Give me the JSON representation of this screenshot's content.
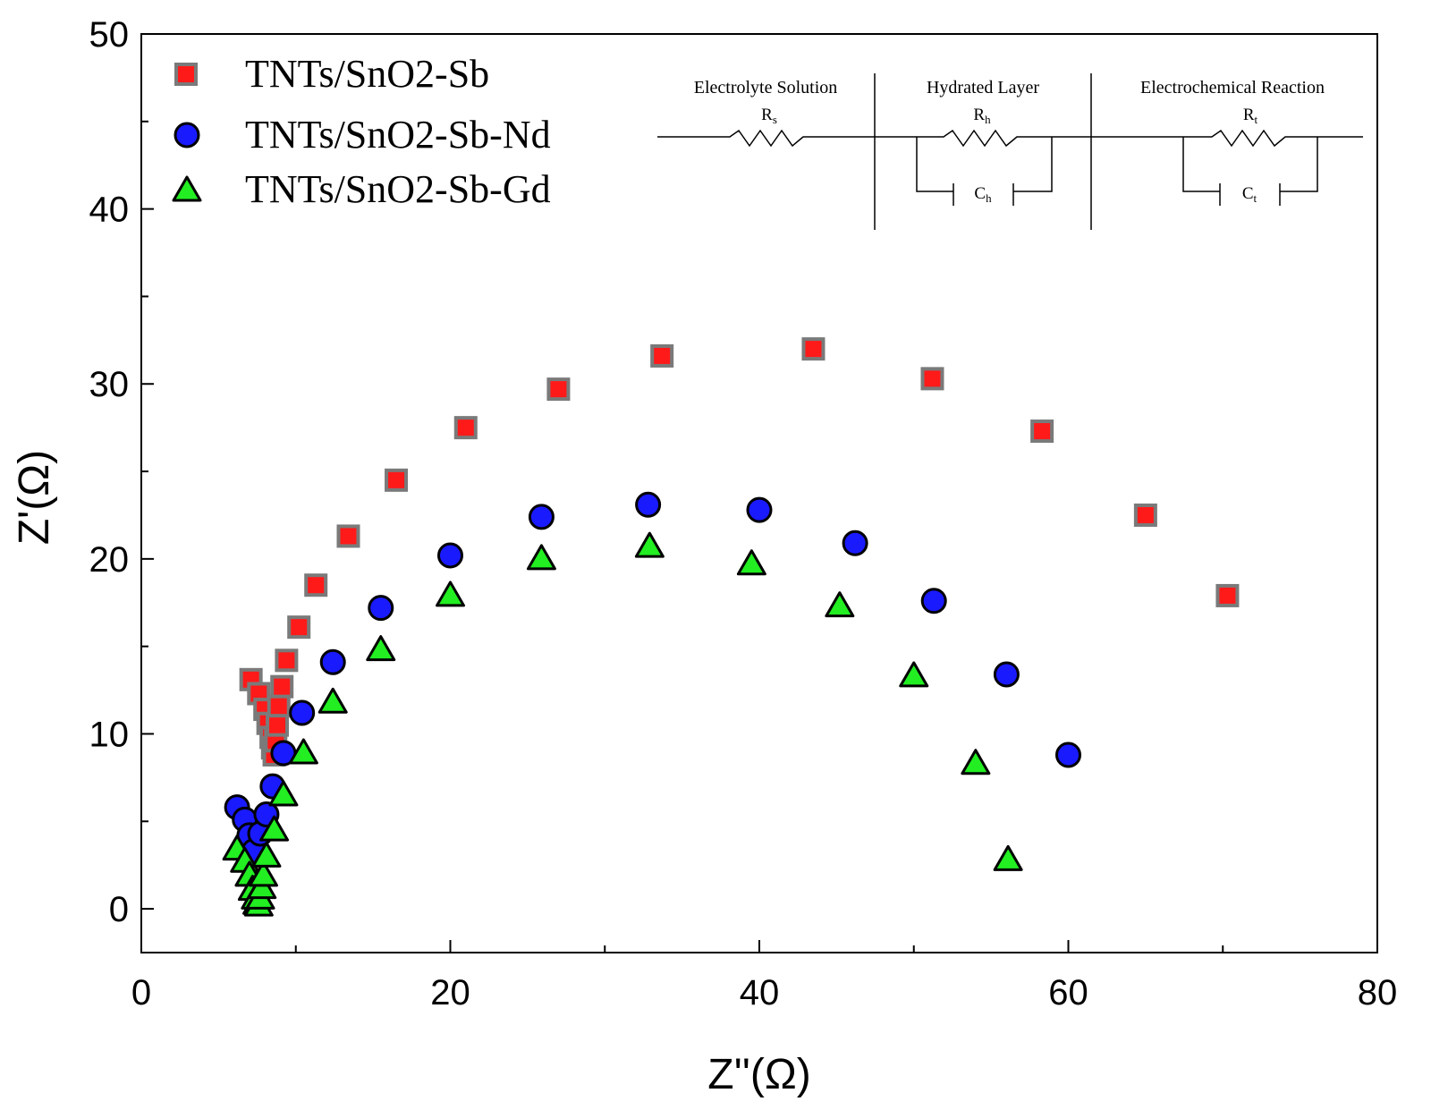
{
  "chart_data": {
    "type": "scatter",
    "title": "",
    "xlabel": "Z''(Ω)",
    "ylabel": "Z'(Ω)",
    "xlim": [
      0,
      80
    ],
    "ylim": [
      -2.5,
      50
    ],
    "xticks": [
      0,
      20,
      40,
      60,
      80
    ],
    "yticks": [
      0,
      10,
      20,
      30,
      40,
      50
    ],
    "legend_position": "top-left",
    "series": [
      {
        "name": "TNTs/SnO2-Sb",
        "marker": "square",
        "color": "#ff1a1a",
        "edge": "#7a7a7a",
        "x": [
          7.1,
          7.6,
          8.0,
          8.2,
          8.4,
          8.5,
          8.6,
          8.7,
          8.8,
          8.9,
          9.1,
          9.4,
          10.2,
          11.3,
          13.4,
          16.5,
          21.0,
          27.0,
          33.7,
          43.5,
          51.2,
          58.3,
          65.0,
          70.3
        ],
        "y": [
          13.1,
          12.3,
          11.4,
          10.6,
          9.8,
          9.2,
          8.8,
          9.6,
          10.5,
          11.6,
          12.7,
          14.2,
          16.1,
          18.5,
          21.3,
          24.5,
          27.5,
          29.7,
          31.6,
          32.0,
          30.3,
          27.3,
          22.5,
          17.9
        ]
      },
      {
        "name": "TNTs/SnO2-Sb-Nd",
        "marker": "circle",
        "color": "#1a1aff",
        "edge": "#000000",
        "x": [
          6.2,
          6.7,
          7.0,
          7.3,
          7.7,
          8.1,
          8.5,
          9.2,
          10.4,
          12.4,
          15.5,
          20.0,
          25.9,
          32.8,
          40.0,
          46.2,
          51.3,
          56.0,
          60.0
        ],
        "y": [
          5.8,
          5.1,
          4.2,
          3.3,
          4.3,
          5.4,
          7.0,
          8.9,
          11.2,
          14.1,
          17.2,
          20.2,
          22.4,
          23.1,
          22.8,
          20.9,
          17.6,
          13.4,
          8.8
        ],
        "points_note": ""
      },
      {
        "name": "TNTs/SnO2-Sb-Gd",
        "marker": "triangle",
        "color": "#22ee22",
        "edge": "#000000",
        "x": [
          6.2,
          6.7,
          7.0,
          7.2,
          7.4,
          7.5,
          7.6,
          7.7,
          7.8,
          7.9,
          8.1,
          8.6,
          9.2,
          10.5,
          12.4,
          15.5,
          20.0,
          25.9,
          32.9,
          39.5,
          45.2,
          50.0,
          54.0,
          56.1
        ],
        "y": [
          3.4,
          2.7,
          1.9,
          1.1,
          0.6,
          0.3,
          0.2,
          0.6,
          1.2,
          1.9,
          3.0,
          4.5,
          6.5,
          8.9,
          11.8,
          14.8,
          17.9,
          20.0,
          20.7,
          19.7,
          17.3,
          13.3,
          8.3,
          2.8
        ]
      }
    ]
  },
  "circuit": {
    "sections": [
      {
        "label": "Electrolyte Solution",
        "resistor": "R",
        "resistor_sub": "s"
      },
      {
        "label": "Hydrated Layer",
        "resistor": "R",
        "resistor_sub": "h",
        "capacitor": "C",
        "capacitor_sub": "h"
      },
      {
        "label": "Electrochemical Reaction",
        "resistor": "R",
        "resistor_sub": "t",
        "capacitor": "C",
        "capacitor_sub": "t"
      }
    ]
  },
  "colors": {
    "axis": "#000000",
    "background": "#ffffff"
  }
}
